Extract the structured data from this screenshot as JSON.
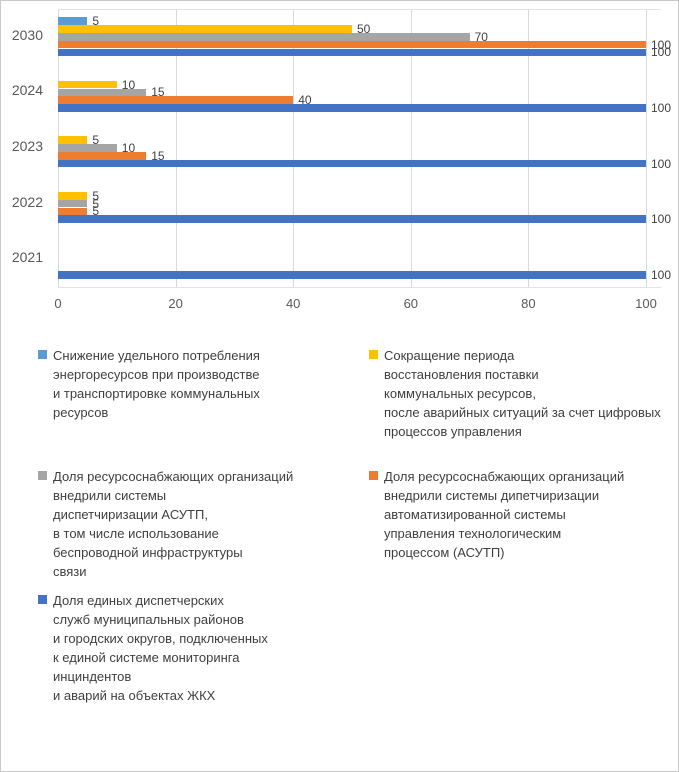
{
  "chart_data": {
    "type": "bar",
    "orientation": "horizontal",
    "title": "",
    "categories": [
      "2030",
      "2024",
      "2023",
      "2022",
      "2021"
    ],
    "series": [
      {
        "name": "Снижение удельного потребления энергоресурсов при производстве и транспортировке коммунальных ресурсов",
        "color": "#5B9BD5",
        "values": [
          5,
          0,
          0,
          0,
          0
        ]
      },
      {
        "name": "Сокращение периода восстановления поставки коммунальных ресурсов, после аварийных ситуаций за счет цифровых процессов управления",
        "color": "#FFC000",
        "values": [
          50,
          10,
          5,
          5,
          0
        ]
      },
      {
        "name": "Доля ресурсоснабжающих организаций внедрили системы диспетчиризации АСУТП, в том числе использование беспроводной инфраструктуры связи",
        "color": "#A5A5A5",
        "values": [
          70,
          15,
          10,
          5,
          0
        ]
      },
      {
        "name": "Доля ресурсоснабжающих организаций внедрили системы дипетчиризации автоматизированной системы управления технологическим процессом (АСУТП)",
        "color": "#ED7D31",
        "values": [
          100,
          40,
          15,
          5,
          0
        ]
      },
      {
        "name": "Доля единых диспетчерских служб муниципальных районов и городских округов, подключенных к единой системе мониторинга инциндентов и аварий на объектах ЖКХ",
        "color": "#4472C4",
        "values": [
          100,
          100,
          100,
          100,
          100
        ]
      }
    ],
    "x_ticks": [
      0,
      20,
      40,
      60,
      80,
      100
    ],
    "xlim": [
      0,
      100
    ],
    "grid": true,
    "data_labels": true,
    "legend_position": "bottom"
  },
  "legend": {
    "items": [
      {
        "label": "Снижение удельного потребления\nэнергоресурсов при производстве\nи транспортировке коммунальных\nресурсов",
        "color": "#5B9BD5"
      },
      {
        "label": "Сокращение периода\nвосстановления поставки\nкоммунальных ресурсов,\nпосле аварийных ситуаций за  счет цифровых\nпроцессов управления",
        "color": "#FFC000"
      },
      {
        "label": "Доля ресурсоснабжающих организаций\nвнедрили системы\nдиспетчиризации АСУТП,\nв том числе использование\nбеспроводной инфраструктуры\nсвязи",
        "color": "#A5A5A5"
      },
      {
        "label": "Доля ресурсоснабжающих организаций\nвнедрили системы дипетчиризации\nавтоматизированной системы\nуправления технологическим\nпроцессом (АСУТП)",
        "color": "#ED7D31"
      },
      {
        "label": "Доля единых диспетчерских\nслужб  муниципальных районов\n и  городских  округов, подключенных\nк единой  системе мониторинга\n инциндентов\n и  аварий на объектах ЖКХ",
        "color": "#4472C4"
      }
    ]
  },
  "colors": {
    "gridline": "#D9D9D9",
    "axis_text": "#595959",
    "data_label_text": "#404040",
    "chart_border": "#C9C9C9"
  }
}
